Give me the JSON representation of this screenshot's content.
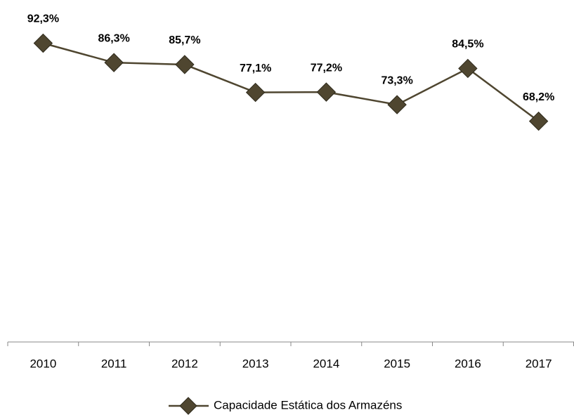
{
  "chart_data": {
    "type": "line",
    "categories": [
      "2010",
      "2011",
      "2012",
      "2013",
      "2014",
      "2015",
      "2016",
      "2017"
    ],
    "series": [
      {
        "name": "Capacidade Estática dos Armazéns",
        "color": "#4f4630",
        "values": [
          92.3,
          86.3,
          85.7,
          77.1,
          77.2,
          73.3,
          84.5,
          68.2
        ],
        "value_labels": [
          "92,3%",
          "86,3%",
          "85,7%",
          "77,1%",
          "77,2%",
          "73,3%",
          "84,5%",
          "68,2%"
        ]
      }
    ],
    "ylim": [
      0,
      100
    ],
    "legend": "bottom"
  }
}
